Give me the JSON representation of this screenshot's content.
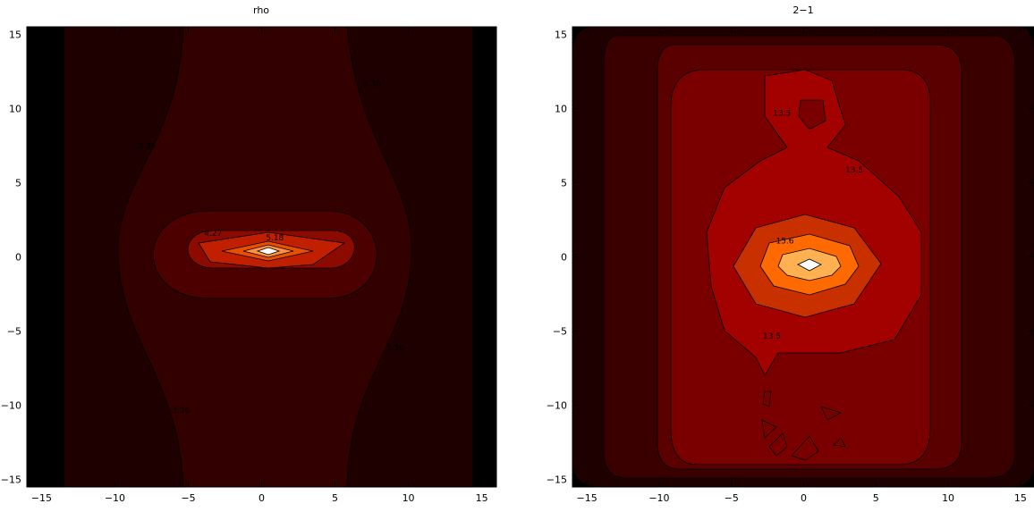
{
  "chart_data": [
    {
      "type": "contour",
      "title": "rho",
      "xlabel": "",
      "ylabel": "",
      "xlim": [
        -16,
        16
      ],
      "ylim": [
        -15.5,
        15.5
      ],
      "xticks": [
        "−15",
        "−10",
        "−5",
        "0",
        "5",
        "10",
        "15"
      ],
      "yticks": [
        "−15",
        "−10",
        "−5",
        "0",
        "5",
        "10",
        "15"
      ],
      "xtick_values": [
        -15,
        -10,
        -5,
        0,
        5,
        10,
        15
      ],
      "ytick_values": [
        -15,
        -10,
        -5,
        0,
        5,
        10,
        15
      ],
      "peak": {
        "x": 0.4,
        "y": 0.5
      },
      "fill_colors": [
        "#000000",
        "#1e0000",
        "#330000",
        "#4d0000",
        "#660000",
        "#8c0a00",
        "#c02000",
        "#e85000",
        "#ff9040",
        "#ffffff"
      ],
      "contour_labels": [
        {
          "text": "4.27",
          "x": -3.3,
          "y": 1.4
        },
        {
          "text": "5.18",
          "x": 0.9,
          "y": 1.1
        },
        {
          "text": "3.36",
          "x": 7.5,
          "y": 11.5
        },
        {
          "text": "3.36",
          "x": -7.8,
          "y": 7.3
        },
        {
          "text": "3.36",
          "x": 9.1,
          "y": -6.3
        },
        {
          "text": "3.36",
          "x": -5.5,
          "y": -10.5
        }
      ]
    },
    {
      "type": "contour",
      "title": "2−1",
      "xlabel": "",
      "ylabel": "",
      "xlim": [
        -16,
        16
      ],
      "ylim": [
        -15.5,
        15.5
      ],
      "xticks": [
        "−15",
        "−10",
        "−5",
        "0",
        "5",
        "10",
        "15"
      ],
      "yticks": [
        "−15",
        "−10",
        "−5",
        "0",
        "5",
        "10",
        "15"
      ],
      "xtick_values": [
        -15,
        -10,
        -5,
        0,
        5,
        10,
        15
      ],
      "ytick_values": [
        -15,
        -10,
        -5,
        0,
        5,
        10,
        15
      ],
      "peak": {
        "x": 0.5,
        "y": -0.3
      },
      "fill_colors": [
        "#000000",
        "#1e0000",
        "#3a0000",
        "#5a0000",
        "#7a0000",
        "#a30000",
        "#c83000",
        "#ff6a00",
        "#ffb050",
        "#ffffff"
      ],
      "contour_labels": [
        {
          "text": "15.6",
          "x": -1.3,
          "y": 0.9
        },
        {
          "text": "13.5",
          "x": -2.2,
          "y": -5.5
        },
        {
          "text": "13.5",
          "x": -1.5,
          "y": 9.5
        },
        {
          "text": "13.5",
          "x": 3.5,
          "y": 5.7
        }
      ]
    }
  ]
}
